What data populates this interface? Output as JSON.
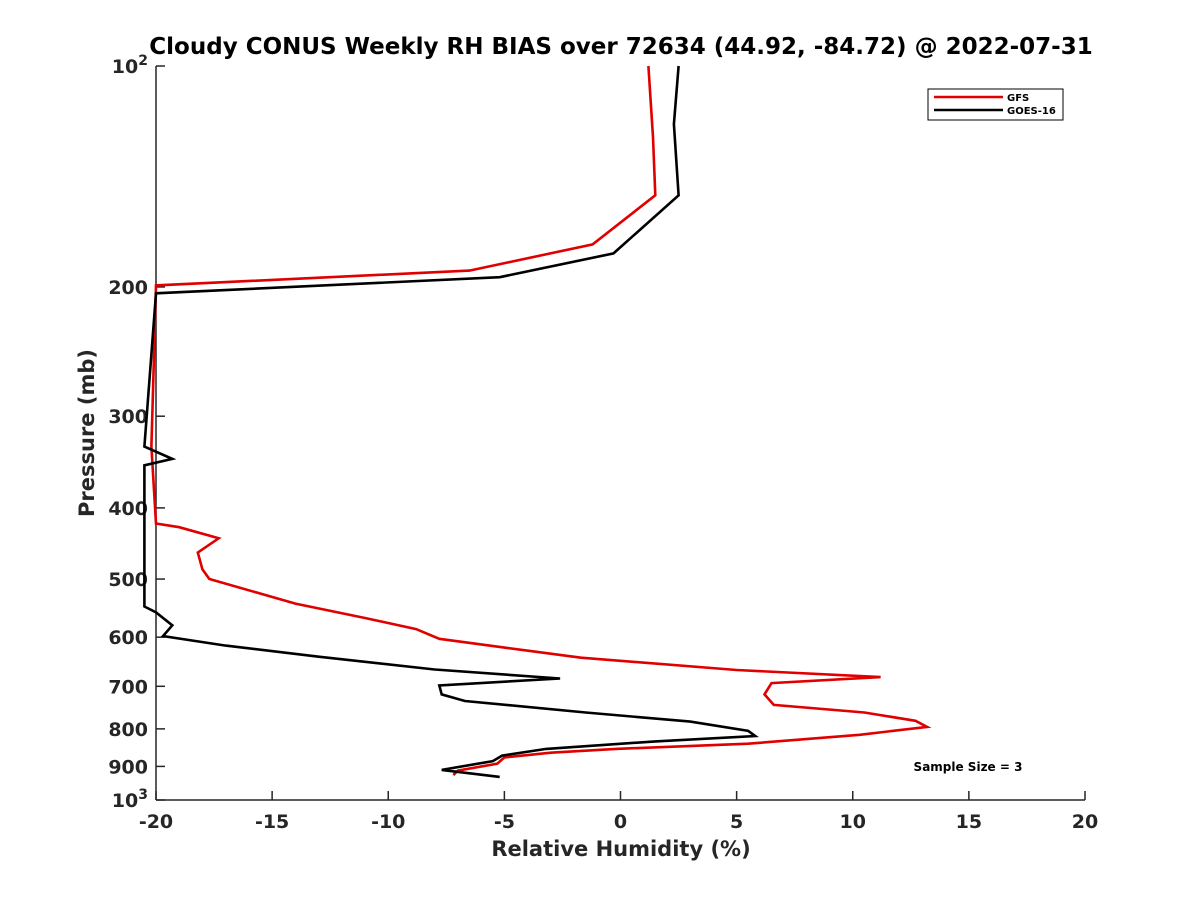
{
  "chart_data": {
    "type": "line",
    "title": "Cloudy CONUS Weekly RH BIAS over 72634 (44.92, -84.72) @ 2022-07-31",
    "xlabel": "Relative Humidity (%)",
    "ylabel": "Pressure (mb)",
    "xlim": [
      -20,
      20
    ],
    "ylim": [
      100,
      1000
    ],
    "y_scale": "log",
    "y_reversed": true,
    "grid": false,
    "legend_position": "top-right",
    "x_ticks": [
      -20,
      -15,
      -10,
      -5,
      0,
      5,
      10,
      15,
      20
    ],
    "x_tick_labels": [
      "-20",
      "-15",
      "-10",
      "-5",
      "0",
      "5",
      "10",
      "15",
      "20"
    ],
    "y_ticks": [
      100,
      200,
      300,
      400,
      500,
      600,
      700,
      800,
      900,
      1000
    ],
    "y_tick_labels": [
      "10^2",
      "200",
      "300",
      "400",
      "500",
      "600",
      "700",
      "800",
      "900",
      "10^3"
    ],
    "series": [
      {
        "name": "GFS",
        "color": "#e00000",
        "points": [
          [
            1.2,
            100
          ],
          [
            1.4,
            125
          ],
          [
            1.5,
            150
          ],
          [
            -1.2,
            175
          ],
          [
            -6.5,
            190
          ],
          [
            -20.0,
            199
          ],
          [
            -20.2,
            330
          ],
          [
            -20.0,
            420
          ],
          [
            -19.0,
            425
          ],
          [
            -17.3,
            440
          ],
          [
            -18.2,
            460
          ],
          [
            -18.0,
            485
          ],
          [
            -17.7,
            500
          ],
          [
            -14.0,
            540
          ],
          [
            -11.0,
            565
          ],
          [
            -8.8,
            585
          ],
          [
            -7.8,
            603
          ],
          [
            -5.0,
            620
          ],
          [
            -1.7,
            640
          ],
          [
            5.0,
            665
          ],
          [
            11.2,
            680
          ],
          [
            6.5,
            693
          ],
          [
            6.2,
            718
          ],
          [
            6.6,
            742
          ],
          [
            10.5,
            760
          ],
          [
            12.7,
            780
          ],
          [
            13.2,
            795
          ],
          [
            10.3,
            815
          ],
          [
            5.5,
            838
          ],
          [
            -0.2,
            852
          ],
          [
            -3.0,
            862
          ],
          [
            -5.0,
            875
          ],
          [
            -5.3,
            892
          ],
          [
            -7.0,
            912
          ],
          [
            -7.2,
            925
          ]
        ]
      },
      {
        "name": "GOES-16",
        "color": "#000000",
        "points": [
          [
            2.5,
            100
          ],
          [
            2.3,
            120
          ],
          [
            2.5,
            150
          ],
          [
            -0.3,
            180
          ],
          [
            -5.2,
            194
          ],
          [
            -20.0,
            204
          ],
          [
            -20.5,
            330
          ],
          [
            -19.3,
            343
          ],
          [
            -20.5,
            350
          ],
          [
            -20.5,
            545
          ],
          [
            -20.0,
            555
          ],
          [
            -19.3,
            578
          ],
          [
            -19.7,
            598
          ],
          [
            -17.0,
            616
          ],
          [
            -13.0,
            638
          ],
          [
            -8.0,
            664
          ],
          [
            -2.6,
            683
          ],
          [
            -7.8,
            698
          ],
          [
            -7.7,
            718
          ],
          [
            -6.7,
            733
          ],
          [
            -1.5,
            760
          ],
          [
            3.0,
            782
          ],
          [
            5.5,
            805
          ],
          [
            5.8,
            818
          ],
          [
            1.5,
            832
          ],
          [
            -3.2,
            852
          ],
          [
            -5.1,
            870
          ],
          [
            -5.5,
            885
          ],
          [
            -7.7,
            910
          ],
          [
            -5.2,
            930
          ]
        ]
      }
    ],
    "annotations": [
      "Sample Size = 3"
    ]
  }
}
